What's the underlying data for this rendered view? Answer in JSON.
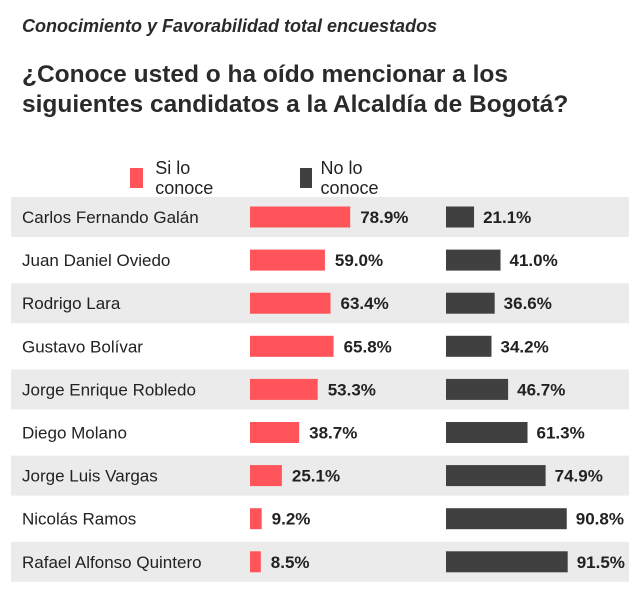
{
  "header": {
    "subtitle": "Conocimiento y Favorabilidad total encuestados",
    "title": "¿Conoce usted o ha oído mencionar a los siguientes candidatos a la Alcaldía de Bogotá?"
  },
  "legend": {
    "yes_label": "Si lo conoce",
    "no_label": "No lo conoce"
  },
  "colors": {
    "yes": "#ff5459",
    "no": "#404040",
    "row_shade": "#ebebeb"
  },
  "chart_data": {
    "type": "bar",
    "categories": [
      "Carlos Fernando Galán",
      "Juan Daniel Oviedo",
      "Rodrigo Lara",
      "Gustavo Bolívar",
      "Jorge Enrique Robledo",
      "Diego Molano",
      "Jorge Luis Vargas",
      "Nicolás Ramos",
      "Rafael Alfonso Quintero"
    ],
    "series": [
      {
        "name": "Si lo conoce",
        "values": [
          78.9,
          59.0,
          63.4,
          65.8,
          53.3,
          38.7,
          25.1,
          9.2,
          8.5
        ]
      },
      {
        "name": "No lo conoce",
        "values": [
          21.1,
          41.0,
          36.6,
          34.2,
          46.7,
          61.3,
          74.9,
          90.8,
          91.5
        ]
      }
    ],
    "value_labels": {
      "yes": [
        "78.9%",
        "59.0%",
        "63.4%",
        "65.8%",
        "53.3%",
        "38.7%",
        "25.1%",
        "9.2%",
        "8.5%"
      ],
      "no": [
        "21.1%",
        "41.0%",
        "36.6%",
        "34.2%",
        "46.7%",
        "61.3%",
        "74.9%",
        "90.8%",
        "91.5%"
      ]
    },
    "unit": "%",
    "xlim": [
      0,
      100
    ],
    "grid": false,
    "legend_position": "top"
  }
}
